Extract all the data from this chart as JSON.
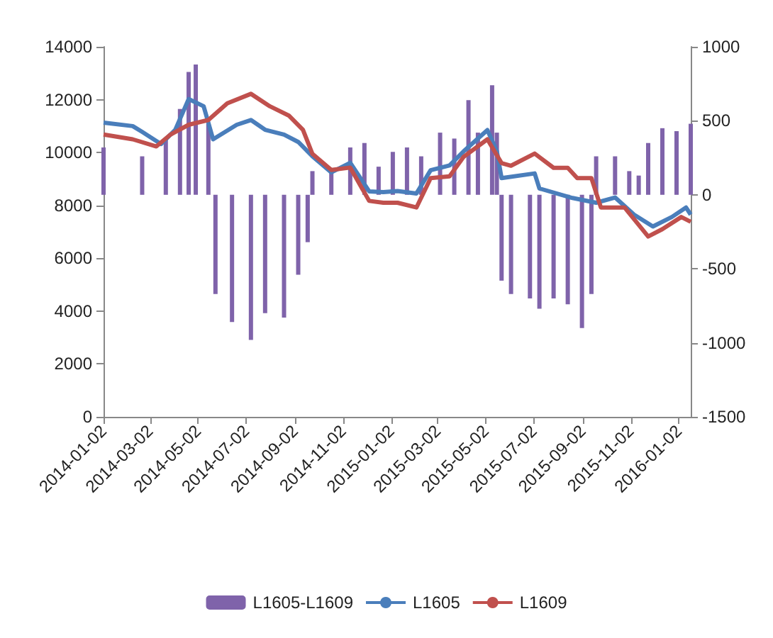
{
  "chart_data": {
    "type": "line",
    "xlim": [
      "2014-01-02",
      "2016-01-17"
    ],
    "xticks": [
      "2014-01-02",
      "2014-03-02",
      "2014-05-02",
      "2014-07-02",
      "2014-09-02",
      "2014-11-02",
      "2015-01-02",
      "2015-03-02",
      "2015-05-02",
      "2015-07-02",
      "2015-09-02",
      "2015-11-02",
      "2016-01-02"
    ],
    "ylim": [
      0,
      14000
    ],
    "yticks": [
      0,
      2000,
      4000,
      6000,
      8000,
      10000,
      12000,
      14000
    ],
    "y2lim": [
      -1500,
      1000
    ],
    "y2ticks": [
      -1500,
      -1000,
      -500,
      0,
      500,
      1000
    ],
    "legend": "bottom",
    "marker": "none",
    "series": [
      {
        "name": "L1605-L1609",
        "type": "bar",
        "axis": "y2",
        "color": "#7f63aa",
        "x": [
          "2014-01-02",
          "2014-02-20",
          "2014-03-22",
          "2014-04-09",
          "2014-04-20",
          "2014-04-29",
          "2014-05-15",
          "2014-05-24",
          "2014-06-14",
          "2014-07-08",
          "2014-07-26",
          "2014-08-19",
          "2014-09-06",
          "2014-09-18",
          "2014-09-24",
          "2014-10-18",
          "2014-11-11",
          "2014-11-29",
          "2014-12-17",
          "2015-01-04",
          "2015-01-22",
          "2015-02-09",
          "2015-03-05",
          "2015-03-23",
          "2015-04-10",
          "2015-04-22",
          "2015-05-10",
          "2015-05-16",
          "2015-05-22",
          "2015-06-03",
          "2015-06-27",
          "2015-07-09",
          "2015-07-27",
          "2015-08-14",
          "2015-09-01",
          "2015-09-13",
          "2015-09-19",
          "2015-10-13",
          "2015-10-31",
          "2015-11-12",
          "2015-11-24",
          "2015-12-12",
          "2015-12-30",
          "2016-01-17"
        ],
        "values": [
          320,
          260,
          380,
          580,
          830,
          880,
          480,
          -670,
          -860,
          -980,
          -800,
          -830,
          -540,
          -320,
          160,
          160,
          320,
          350,
          190,
          290,
          320,
          260,
          420,
          380,
          640,
          420,
          740,
          420,
          -580,
          -670,
          -700,
          -770,
          -700,
          -740,
          -900,
          -670,
          260,
          260,
          160,
          130,
          350,
          450,
          430,
          480
        ]
      },
      {
        "name": "L1605",
        "color": "#4a7ebb",
        "x": [
          "2014-01-02",
          "2014-02-08",
          "2014-02-20",
          "2014-03-16",
          "2014-04-03",
          "2014-04-20",
          "2014-05-09",
          "2014-05-21",
          "2014-06-20",
          "2014-07-08",
          "2014-07-26",
          "2014-08-19",
          "2014-09-06",
          "2014-09-24",
          "2014-10-18",
          "2014-11-11",
          "2014-12-05",
          "2014-12-23",
          "2015-01-10",
          "2015-02-03",
          "2015-02-21",
          "2015-03-17",
          "2015-04-04",
          "2015-05-04",
          "2015-05-16",
          "2015-05-22",
          "2015-07-03",
          "2015-07-09",
          "2015-08-20",
          "2015-09-19",
          "2015-10-13",
          "2015-11-06",
          "2015-11-30",
          "2015-12-24",
          "2016-01-11",
          "2016-01-17"
        ],
        "values": [
          11130,
          11000,
          10780,
          10320,
          10860,
          12020,
          11750,
          10500,
          11050,
          11230,
          10860,
          10680,
          10400,
          9860,
          9250,
          9610,
          8530,
          8500,
          8540,
          8450,
          9330,
          9510,
          10050,
          10850,
          10050,
          9030,
          9210,
          8640,
          8280,
          8100,
          8300,
          7650,
          7200,
          7560,
          7920,
          7650
        ]
      },
      {
        "name": "L1609",
        "color": "#c0504d",
        "x": [
          "2014-01-02",
          "2014-02-08",
          "2014-03-10",
          "2014-03-28",
          "2014-04-20",
          "2014-05-15",
          "2014-06-08",
          "2014-07-08",
          "2014-08-01",
          "2014-08-25",
          "2014-09-12",
          "2014-09-24",
          "2014-10-18",
          "2014-11-11",
          "2014-12-05",
          "2014-12-23",
          "2015-01-10",
          "2015-02-03",
          "2015-02-21",
          "2015-03-17",
          "2015-04-04",
          "2015-05-04",
          "2015-05-22",
          "2015-06-03",
          "2015-07-03",
          "2015-07-27",
          "2015-08-14",
          "2015-08-26",
          "2015-09-13",
          "2015-09-25",
          "2015-10-25",
          "2015-11-24",
          "2015-12-12",
          "2016-01-05",
          "2016-01-17"
        ],
        "values": [
          10680,
          10500,
          10230,
          10680,
          11050,
          11230,
          11860,
          12220,
          11750,
          11400,
          10860,
          9950,
          9340,
          9430,
          8170,
          8100,
          8100,
          7920,
          9030,
          9100,
          9840,
          10500,
          9600,
          9500,
          9960,
          9420,
          9420,
          9030,
          9030,
          7920,
          7920,
          6820,
          7100,
          7560,
          7380
        ]
      }
    ]
  }
}
